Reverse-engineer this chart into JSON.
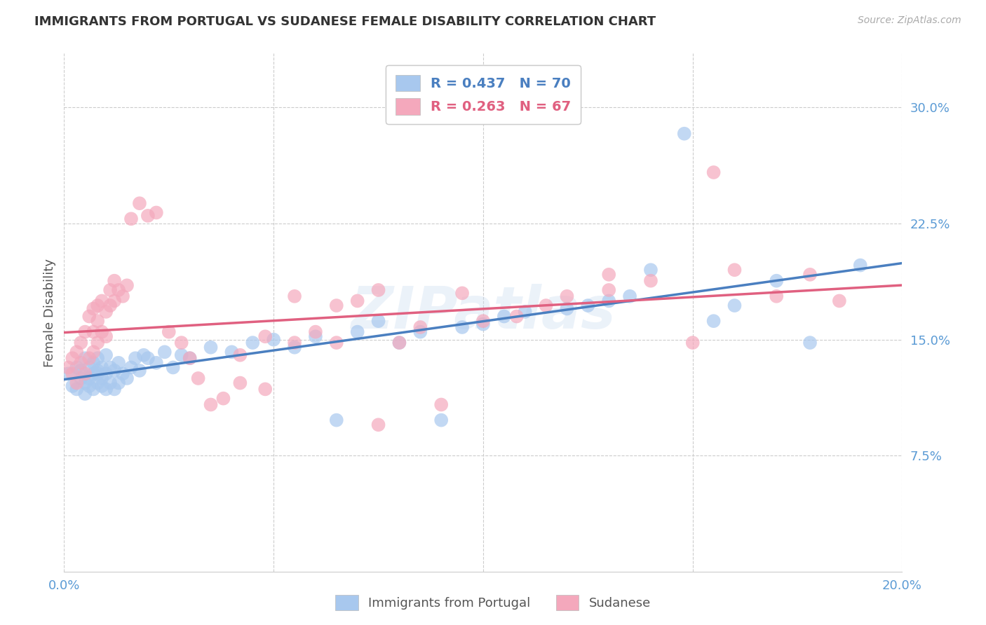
{
  "title": "IMMIGRANTS FROM PORTUGAL VS SUDANESE FEMALE DISABILITY CORRELATION CHART",
  "source": "Source: ZipAtlas.com",
  "ylabel": "Female Disability",
  "ytick_labels": [
    "7.5%",
    "15.0%",
    "22.5%",
    "30.0%"
  ],
  "ytick_values": [
    0.075,
    0.15,
    0.225,
    0.3
  ],
  "xlim": [
    0.0,
    0.2
  ],
  "ylim": [
    0.0,
    0.335
  ],
  "legend_label_blue": "R = 0.437   N = 70",
  "legend_label_pink": "R = 0.263   N = 67",
  "legend_bottom_blue": "Immigrants from Portugal",
  "legend_bottom_pink": "Sudanese",
  "color_blue": "#a8c8ee",
  "color_pink": "#f4a8bc",
  "color_blue_line": "#4a7fc0",
  "color_pink_line": "#e06080",
  "color_blue_legend_text": "#4a7fc0",
  "color_pink_legend_text": "#e06080",
  "watermark": "ZIPatlas",
  "background_color": "#ffffff",
  "grid_color": "#cccccc",
  "axis_label_color": "#5b9bd5",
  "title_color": "#333333",
  "portugal_x": [
    0.001,
    0.002,
    0.003,
    0.003,
    0.004,
    0.004,
    0.005,
    0.005,
    0.005,
    0.006,
    0.006,
    0.006,
    0.007,
    0.007,
    0.007,
    0.008,
    0.008,
    0.008,
    0.008,
    0.009,
    0.009,
    0.009,
    0.01,
    0.01,
    0.01,
    0.011,
    0.011,
    0.012,
    0.012,
    0.013,
    0.013,
    0.014,
    0.015,
    0.016,
    0.017,
    0.018,
    0.019,
    0.02,
    0.022,
    0.024,
    0.026,
    0.028,
    0.03,
    0.035,
    0.04,
    0.045,
    0.05,
    0.055,
    0.06,
    0.065,
    0.07,
    0.075,
    0.08,
    0.085,
    0.09,
    0.095,
    0.1,
    0.105,
    0.11,
    0.12,
    0.125,
    0.13,
    0.135,
    0.14,
    0.148,
    0.155,
    0.16,
    0.17,
    0.178,
    0.19
  ],
  "portugal_y": [
    0.128,
    0.12,
    0.132,
    0.118,
    0.125,
    0.13,
    0.115,
    0.122,
    0.138,
    0.12,
    0.125,
    0.132,
    0.118,
    0.128,
    0.135,
    0.122,
    0.128,
    0.13,
    0.138,
    0.12,
    0.125,
    0.132,
    0.118,
    0.128,
    0.14,
    0.122,
    0.132,
    0.118,
    0.13,
    0.122,
    0.135,
    0.128,
    0.125,
    0.132,
    0.138,
    0.13,
    0.14,
    0.138,
    0.135,
    0.142,
    0.132,
    0.14,
    0.138,
    0.145,
    0.142,
    0.148,
    0.15,
    0.145,
    0.152,
    0.098,
    0.155,
    0.162,
    0.148,
    0.155,
    0.098,
    0.158,
    0.16,
    0.165,
    0.168,
    0.17,
    0.172,
    0.175,
    0.178,
    0.195,
    0.283,
    0.162,
    0.172,
    0.188,
    0.148,
    0.198
  ],
  "sudanese_x": [
    0.001,
    0.002,
    0.002,
    0.003,
    0.003,
    0.004,
    0.004,
    0.005,
    0.005,
    0.006,
    0.006,
    0.007,
    0.007,
    0.007,
    0.008,
    0.008,
    0.008,
    0.009,
    0.009,
    0.01,
    0.01,
    0.011,
    0.011,
    0.012,
    0.012,
    0.013,
    0.014,
    0.015,
    0.016,
    0.018,
    0.02,
    0.022,
    0.025,
    0.028,
    0.03,
    0.032,
    0.035,
    0.038,
    0.042,
    0.048,
    0.055,
    0.06,
    0.065,
    0.07,
    0.075,
    0.08,
    0.085,
    0.09,
    0.095,
    0.1,
    0.108,
    0.115,
    0.12,
    0.13,
    0.14,
    0.15,
    0.16,
    0.17,
    0.178,
    0.185,
    0.042,
    0.048,
    0.055,
    0.065,
    0.075,
    0.13,
    0.155
  ],
  "sudanese_y": [
    0.132,
    0.128,
    0.138,
    0.122,
    0.142,
    0.135,
    0.148,
    0.128,
    0.155,
    0.138,
    0.165,
    0.142,
    0.155,
    0.17,
    0.148,
    0.162,
    0.172,
    0.155,
    0.175,
    0.152,
    0.168,
    0.172,
    0.182,
    0.175,
    0.188,
    0.182,
    0.178,
    0.185,
    0.228,
    0.238,
    0.23,
    0.232,
    0.155,
    0.148,
    0.138,
    0.125,
    0.108,
    0.112,
    0.122,
    0.118,
    0.178,
    0.155,
    0.148,
    0.175,
    0.095,
    0.148,
    0.158,
    0.108,
    0.18,
    0.162,
    0.165,
    0.172,
    0.178,
    0.182,
    0.188,
    0.148,
    0.195,
    0.178,
    0.192,
    0.175,
    0.14,
    0.152,
    0.148,
    0.172,
    0.182,
    0.192,
    0.258
  ]
}
